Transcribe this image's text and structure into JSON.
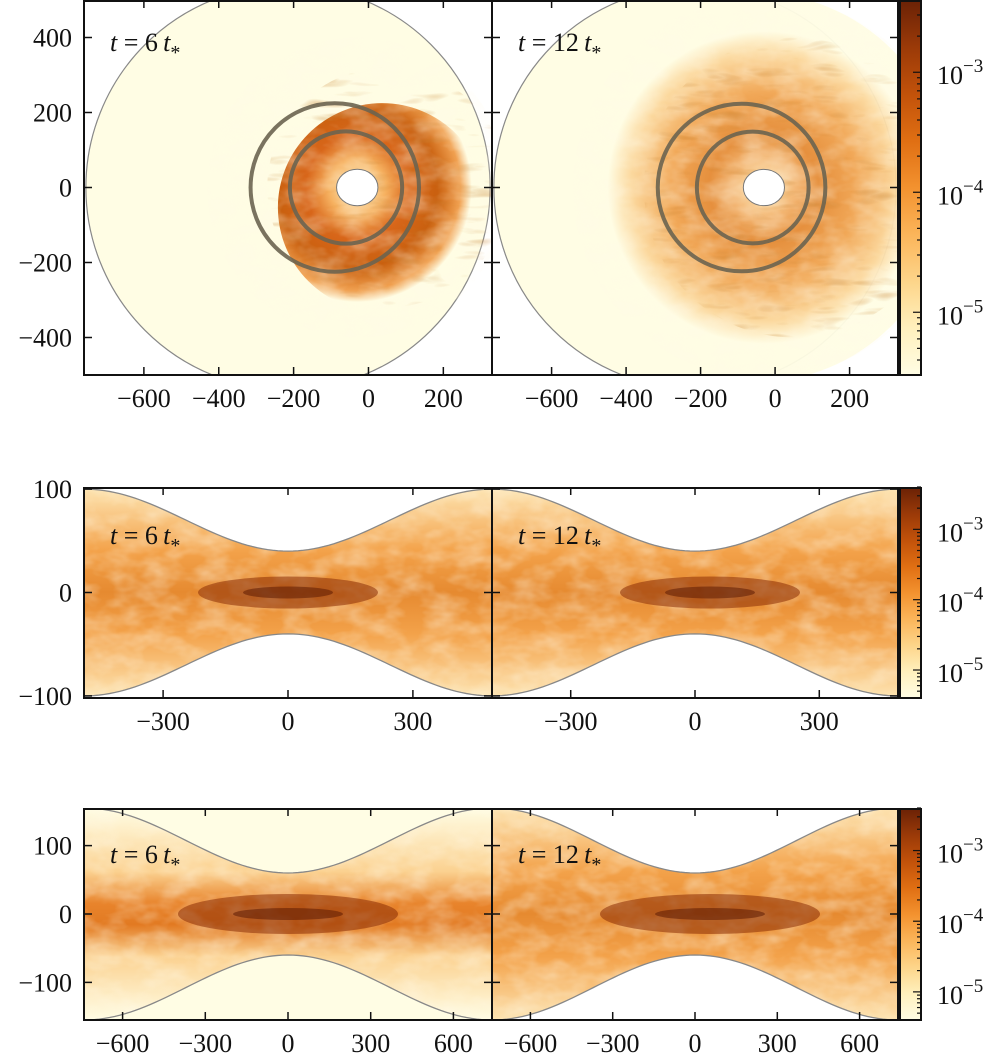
{
  "figure": {
    "description": "Six-panel simulation snapshot figure: face-on (top row) and two edge-on (middle, bottom rows) density maps at two times, each row with a logarithmic colorbar",
    "colormap": [
      "#fffde4",
      "#fff0bd",
      "#fdd58a",
      "#fbb55a",
      "#f3922f",
      "#e06f13",
      "#c2520a",
      "#9b3a08",
      "#6b2206"
    ],
    "annulus_line_color": "#6b6450",
    "boundary_line_color": "#888888"
  },
  "chart_data": [
    {
      "type": "heatmap",
      "row": "top",
      "view": "face-on",
      "panels": [
        {
          "label": {
            "var": "t",
            "eq": " = ",
            "num": "6",
            "unit": "t",
            "sub": "*"
          }
        },
        {
          "label": {
            "var": "t",
            "eq": " = ",
            "num": "12",
            "unit": "t",
            "sub": "*"
          }
        }
      ],
      "xlim": [
        -760,
        330
      ],
      "ylim": [
        -500,
        500
      ],
      "xticks": [
        -600,
        -400,
        -200,
        0,
        200
      ],
      "xtick_labels": [
        "−600",
        "−400",
        "−200",
        "0",
        "200"
      ],
      "yticks": [
        400,
        200,
        0,
        -200,
        -400
      ],
      "ytick_labels": [
        "400",
        "200",
        "0",
        "−200",
        "−400"
      ],
      "domain_outer_radius": 540,
      "domain_center_x": -215,
      "inner_hole_radius": 65,
      "inner_hole_center_x": -30,
      "reference_circles": [
        {
          "center_x": -60,
          "radius": 150
        },
        {
          "center_x": -90,
          "radius": 225
        }
      ],
      "colorbar": {
        "scale": "log",
        "ticks": [
          "10⁻³",
          "10⁻⁴",
          "10⁻⁵"
        ],
        "range": [
          3e-06,
          0.004
        ]
      }
    },
    {
      "type": "heatmap",
      "row": "middle",
      "view": "edge-on",
      "panels": [
        {
          "label": {
            "var": "t",
            "eq": " = ",
            "num": "6",
            "unit": "t",
            "sub": "*"
          }
        },
        {
          "label": {
            "var": "t",
            "eq": " = ",
            "num": "12",
            "unit": "t",
            "sub": "*"
          }
        }
      ],
      "xlim": [
        -490,
        490
      ],
      "ylim": [
        -102,
        102
      ],
      "xticks": [
        -300,
        0,
        300
      ],
      "xtick_labels": [
        "−300",
        "0",
        "300"
      ],
      "yticks": [
        100,
        0,
        -100
      ],
      "ytick_labels": [
        "100",
        "0",
        "−100"
      ],
      "boundary": {
        "min_half_height": 40,
        "max_half_height": 100
      },
      "colorbar": {
        "scale": "log",
        "ticks": [
          "10⁻³",
          "10⁻⁴",
          "10⁻⁵"
        ],
        "range": [
          4e-06,
          0.004
        ]
      }
    },
    {
      "type": "heatmap",
      "row": "bottom",
      "view": "edge-on",
      "panels": [
        {
          "label": {
            "var": "t",
            "eq": " = ",
            "num": "6",
            "unit": "t",
            "sub": "*"
          }
        },
        {
          "label": {
            "var": "t",
            "eq": " = ",
            "num": "12",
            "unit": "t",
            "sub": "*"
          }
        }
      ],
      "xlim": [
        -740,
        740
      ],
      "ylim": [
        -155,
        155
      ],
      "xticks": [
        -600,
        -300,
        0,
        300,
        600
      ],
      "xtick_labels": [
        "−600",
        "−300",
        "0",
        "300",
        "600"
      ],
      "yticks": [
        100,
        0,
        -100
      ],
      "ytick_labels": [
        "100",
        "0",
        "−100"
      ],
      "boundary": {
        "min_half_height": 60,
        "max_half_height": 155
      },
      "colorbar": {
        "scale": "log",
        "ticks": [
          "10⁻³",
          "10⁻⁴",
          "10⁻⁵"
        ],
        "range": [
          4e-06,
          0.004
        ]
      }
    }
  ]
}
